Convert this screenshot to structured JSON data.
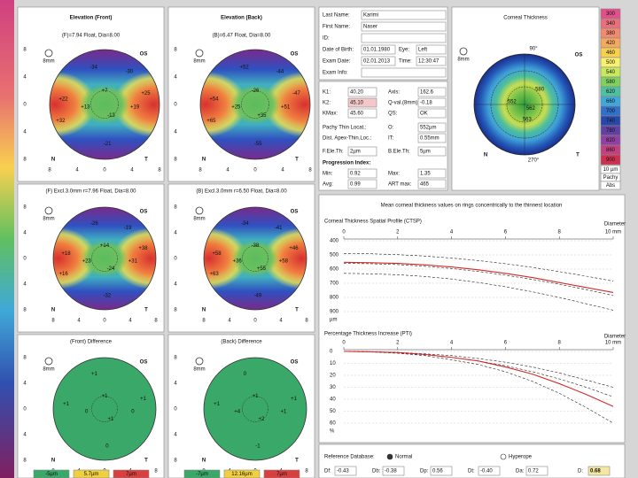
{
  "maps": [
    {
      "title": "Elevation (Front)",
      "subtitle": "(F)=7.94 Float, Dia=8.00",
      "labels": [
        "+22",
        "+13",
        "+7",
        "-13",
        "+19",
        "+25",
        "-21",
        "-34",
        "+32",
        "-30"
      ]
    },
    {
      "title": "Elevation (Back)",
      "subtitle": "(B)=6.47 Float, Dia=8.00",
      "labels": [
        "+54",
        "+25",
        "-26",
        "+35",
        "+51",
        "-47",
        "-55",
        "+52",
        "+65",
        "-44"
      ]
    },
    {
      "subtitle": "(F) Excl.3.0mm r=7.96 Float, Dia=8.00",
      "labels": [
        "+18",
        "+23",
        "+14",
        "-24",
        "+31",
        "+38",
        "-32",
        "-26",
        "+16",
        "-19"
      ]
    },
    {
      "subtitle": "(B) Excl.3.0mm r=6.50 Float, Dia=8.00",
      "labels": [
        "+58",
        "+36",
        "-38",
        "+55",
        "+58",
        "+46",
        "-49",
        "-34",
        "+63",
        "-41"
      ]
    },
    {
      "subtitle": "(Front) Difference",
      "labels": [
        "+1",
        "0",
        "+1",
        "+1",
        "0",
        "+1",
        "0",
        "+1"
      ],
      "legend": [
        "-5µm",
        "5.7µm",
        "7µm"
      ]
    },
    {
      "subtitle": "(Back) Difference",
      "labels": [
        "+1",
        "+4",
        "+1",
        "+2",
        "+1",
        "+1",
        "-1",
        "0"
      ],
      "legend": [
        "-7µm",
        "12.16µm",
        "7µm"
      ]
    }
  ],
  "map_marks": {
    "eye": "OS",
    "scale": "8mm",
    "nasal": "N",
    "temporal": "T"
  },
  "map_axis_ticks": [
    "8",
    "4",
    "0",
    "4",
    "8"
  ],
  "patient": [
    {
      "label": "Last Name:",
      "value": "Karimi"
    },
    {
      "label": "First Name:",
      "value": "Naser"
    },
    {
      "label": "ID:"
    },
    {
      "label": "Date of Birth:",
      "value": "01.01.1980",
      "label2": "Eye:",
      "value2": "Left"
    },
    {
      "label": "Exam Date:",
      "value": "02.01.2013",
      "label2": "Time:",
      "value2": "12:30:47"
    },
    {
      "label": "Exam Info:"
    }
  ],
  "parameters": [
    {
      "label": "K1:",
      "value": "40.20",
      "label2": "Axis:",
      "value2": "162.6"
    },
    {
      "label": "K2:",
      "value": "45.10",
      "label2": "Q-val.(8mm)",
      "value2": "-0.18"
    },
    {
      "label": "KMax:",
      "value": "45.60",
      "label2": "QS:",
      "value2": "OK"
    },
    {
      "label": "Pachy Thin Locat.:",
      "label2": "O:",
      "value2": "552µm"
    },
    {
      "label": "Dist. Apex-Thin.Loc.:",
      "label2": "IT:",
      "value2": "0.55mm"
    },
    {
      "label": "F.Ele.Th:",
      "value": "2µm",
      "label2": "B.Ele.Th:",
      "value2": "5µm"
    },
    {
      "label": "Progression Index:"
    },
    {
      "label": "Min:",
      "value": "0.92",
      "label2": "Max:",
      "value2": "1.35"
    },
    {
      "label": "Avg:",
      "value": "0.99",
      "label2": "ART max:",
      "value2": "465"
    }
  ],
  "thickness": {
    "title": "Corneal Thickness",
    "eye": "OS",
    "scale": "8mm",
    "nasal": "N",
    "temporal": "T",
    "angles": [
      "90°",
      "270°"
    ],
    "labels": [
      "552",
      "562",
      "563",
      "580"
    ]
  },
  "color_scale": {
    "ticks": [
      300,
      340,
      380,
      420,
      460,
      500,
      540,
      580,
      620,
      660,
      700,
      740,
      780,
      820,
      860,
      900
    ],
    "colors": [
      "#e0508a",
      "#e8707a",
      "#f08a70",
      "#f4a860",
      "#f8d050",
      "#f8f070",
      "#c8e860",
      "#80d060",
      "#50c0a0",
      "#40a8d8",
      "#3070c8",
      "#2848a8",
      "#6040a0",
      "#9040a0",
      "#c04080",
      "#d03050"
    ],
    "notes": [
      "10 µm",
      "Pachy",
      "Abs"
    ]
  },
  "graphs": {
    "heading": "Mean corneal thickness values on rings concentrically to the thinnest location",
    "x_label": "Diameter",
    "charts": [
      {
        "type": "line",
        "title": "Corneal Thickness Spatial Profile (CTSP)",
        "y_unit": "µm",
        "x": [
          0,
          1,
          2,
          3,
          4,
          5,
          6,
          7,
          8,
          9,
          10
        ],
        "xlim": [
          0,
          10
        ],
        "xticks": [
          0,
          2,
          4,
          6,
          8,
          {
            "value": 10,
            "label": "10 mm"
          }
        ],
        "ylim": [
          400,
          900
        ],
        "y_inverted": true,
        "yticks": [
          400,
          500,
          600,
          700,
          800,
          900
        ],
        "series": [
          {
            "color": "#222222",
            "dashed": true,
            "values": [
              490,
              492,
              498,
              508,
              522,
              540,
              562,
              588,
              618,
              650,
              685
            ]
          },
          {
            "color": "#222222",
            "dashed": true,
            "values": [
              560,
              562,
              568,
              580,
              596,
              617,
              643,
              673,
              707,
              745,
              787
            ]
          },
          {
            "color": "#222222",
            "dashed": true,
            "values": [
              630,
              633,
              640,
              652,
              670,
              695,
              725,
              760,
              800,
              845,
              890
            ]
          },
          {
            "color": "#d42a2a",
            "dashed": false,
            "values": [
              552,
              555,
              560,
              570,
              585,
              605,
              630,
              660,
              695,
              730,
              765
            ]
          }
        ]
      },
      {
        "type": "line",
        "title": "Percentage Thickness Increase (PTI)",
        "y_unit": "%",
        "x": [
          0,
          1,
          2,
          3,
          4,
          5,
          6,
          7,
          8,
          9,
          10
        ],
        "xlim": [
          0,
          10
        ],
        "xticks": [
          0,
          2,
          4,
          6,
          8,
          {
            "value": 10,
            "label": "10 mm"
          }
        ],
        "ylim": [
          0,
          60
        ],
        "y_inverted": true,
        "yticks": [
          0,
          10,
          20,
          30,
          40,
          50,
          60
        ],
        "series": [
          {
            "color": "#222222",
            "dashed": true,
            "values": [
              0,
              0.2,
              0.8,
              2,
              3.5,
              6,
              9,
              13,
              18,
              24,
              30
            ]
          },
          {
            "color": "#222222",
            "dashed": true,
            "values": [
              0,
              0.3,
              1.2,
              2.8,
              5,
              8,
              12,
              17,
              23,
              30,
              38
            ]
          },
          {
            "color": "#222222",
            "dashed": true,
            "values": [
              0,
              0.5,
              1.5,
              3.5,
              7,
              11,
              17,
              25,
              35,
              47,
              60
            ]
          },
          {
            "color": "#d42a2a",
            "dashed": false,
            "values": [
              0,
              0.3,
              1,
              2.5,
              5,
              8,
              13,
              19,
              27,
              36,
              46
            ]
          }
        ]
      }
    ]
  },
  "reference": {
    "label": "Reference Database:",
    "options": [
      "Normal",
      "Hyperope"
    ],
    "selected": 0,
    "d_values": [
      {
        "label": "Df:",
        "value": "-0.43"
      },
      {
        "label": "Db:",
        "value": "-0.38"
      },
      {
        "label": "Dp:",
        "value": "0.56"
      },
      {
        "label": "Dt:",
        "value": "-0.40"
      },
      {
        "label": "Da:",
        "value": "0.72"
      },
      {
        "label": "D:",
        "value": "0.68"
      }
    ]
  }
}
